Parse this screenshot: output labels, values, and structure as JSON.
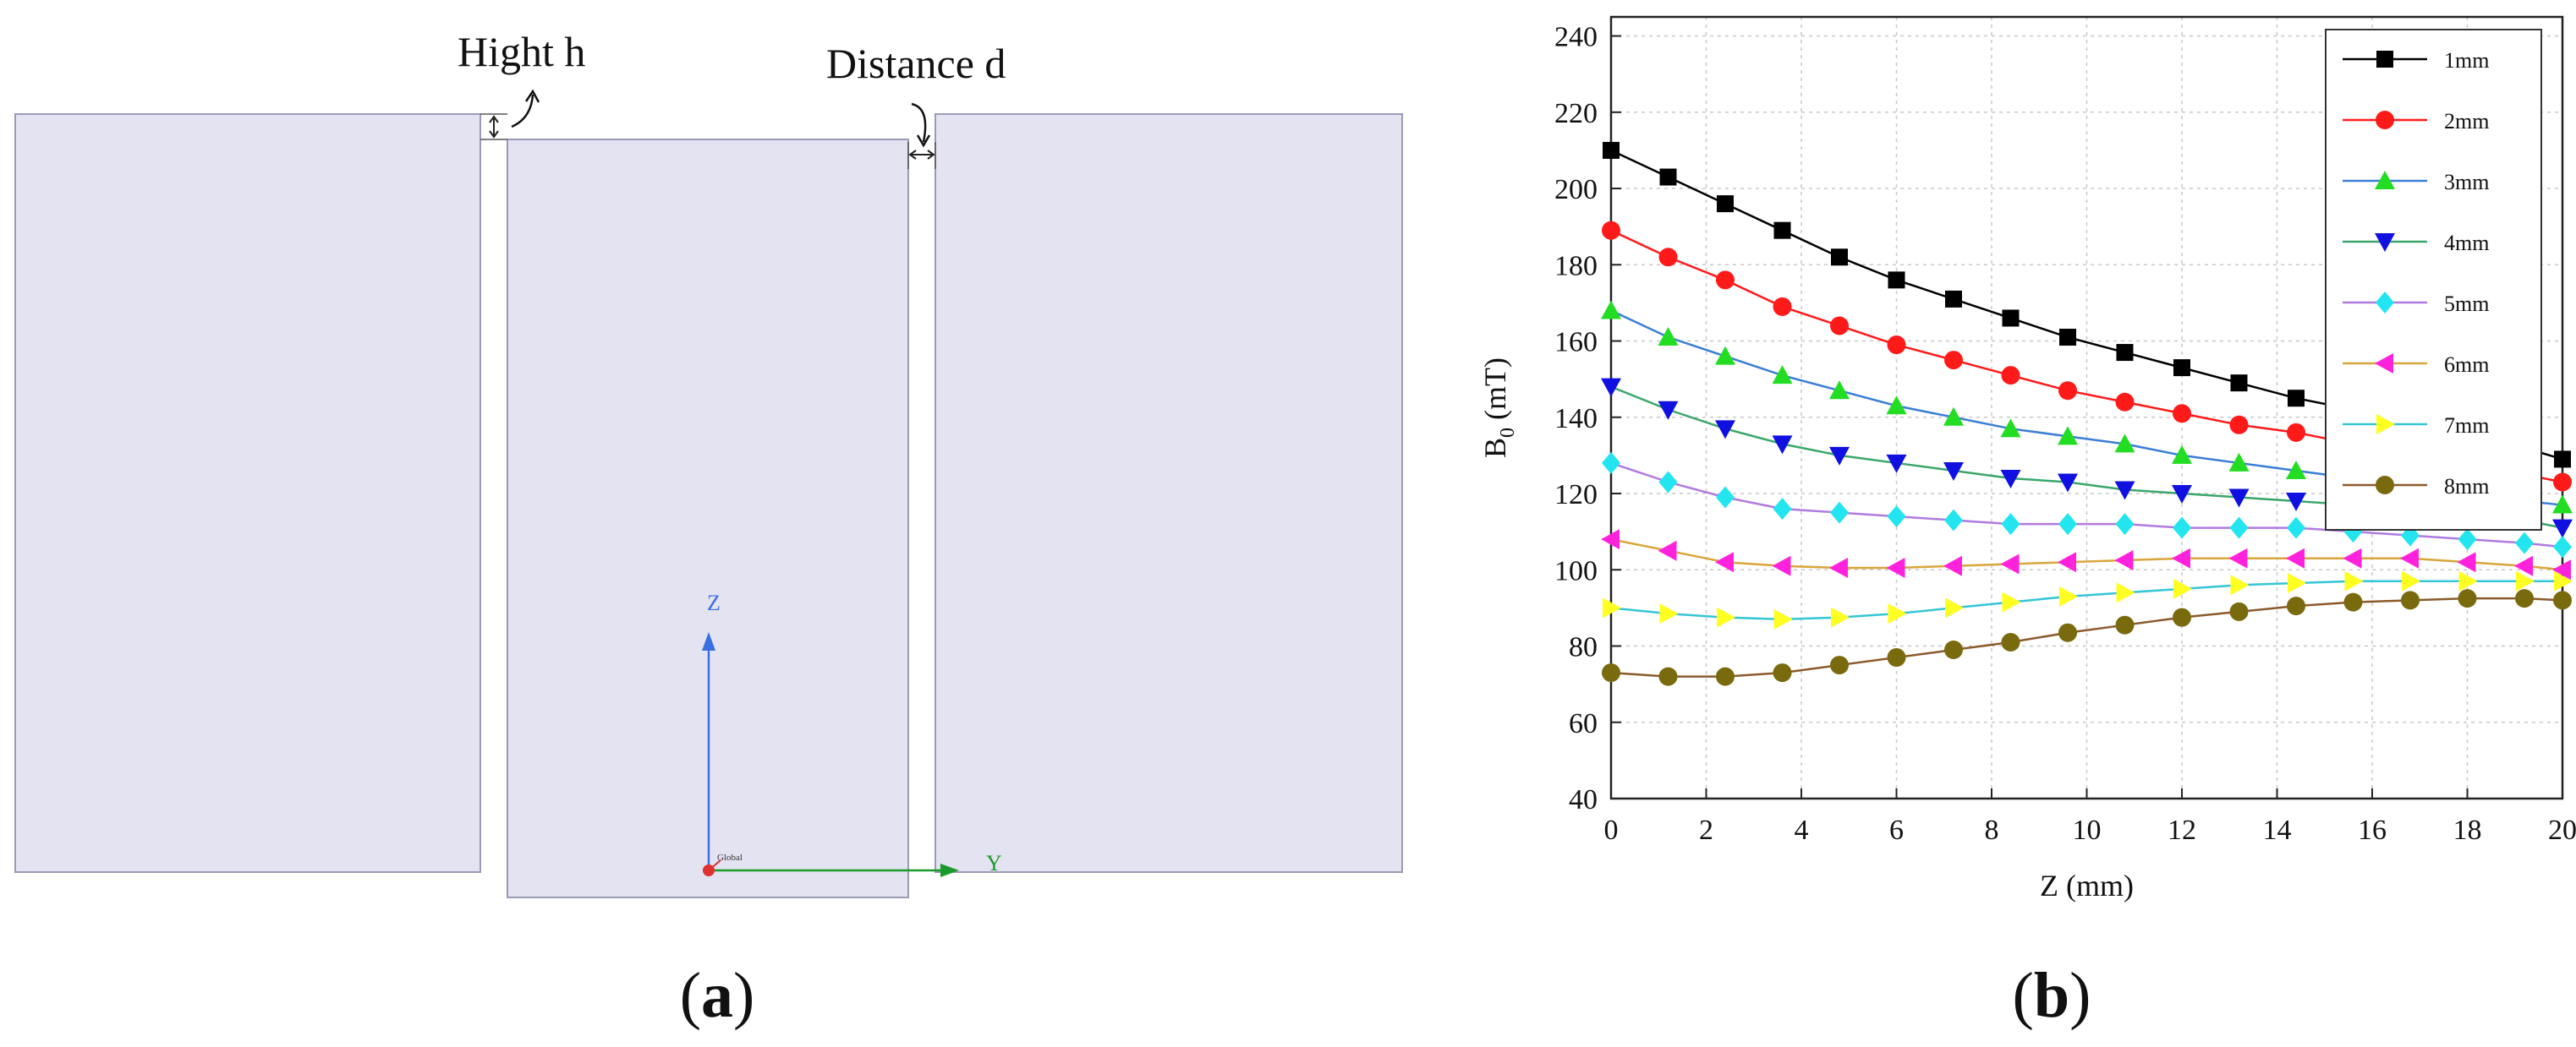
{
  "panel_a": {
    "caption_letter": "a",
    "label_height": "Hight h",
    "label_distance": "Distance d",
    "axis_z": "Z",
    "axis_y": "Y",
    "origin_label": "Global",
    "block_fill": "#e3e3f1",
    "block_stroke": "#9a9ab8"
  },
  "panel_b": {
    "caption_letter": "b"
  },
  "chart_data": {
    "type": "line",
    "title": "",
    "xlabel": "Z (mm)",
    "ylabel": "B0 (mT)",
    "ylabel_main": "B",
    "ylabel_sub": "0",
    "ylabel_unit": " (mT)",
    "xlim": [
      0,
      20
    ],
    "ylim": [
      40,
      245
    ],
    "xticks": [
      0,
      2,
      4,
      6,
      8,
      10,
      12,
      14,
      16,
      18,
      20
    ],
    "yticks": [
      40,
      60,
      80,
      100,
      120,
      140,
      160,
      180,
      200,
      220,
      240
    ],
    "grid": true,
    "legend_position": "top-right",
    "x": [
      0,
      1.2,
      2.4,
      3.6,
      4.8,
      6.0,
      7.2,
      8.4,
      9.6,
      10.8,
      12.0,
      13.2,
      14.4,
      15.6,
      16.8,
      18.0,
      19.2,
      20
    ],
    "series": [
      {
        "name": "1mm",
        "color": "#000000",
        "marker": "square",
        "values": [
          210,
          203,
          196,
          189,
          182,
          176,
          171,
          166,
          161,
          157,
          153,
          149,
          145,
          142,
          138,
          135,
          132,
          129
        ]
      },
      {
        "name": "2mm",
        "color": "#ff1a1a",
        "marker": "circle",
        "values": [
          189,
          182,
          176,
          169,
          164,
          159,
          155,
          151,
          147,
          144,
          141,
          138,
          136,
          133,
          130,
          127,
          125,
          123
        ]
      },
      {
        "name": "3mm",
        "color": "#22dd22",
        "line_color": "#3a7ed6",
        "marker": "triangle-up",
        "values": [
          168,
          161,
          156,
          151,
          147,
          143,
          140,
          137,
          135,
          133,
          130,
          128,
          126,
          124,
          122,
          120,
          118,
          117
        ]
      },
      {
        "name": "4mm",
        "color": "#1010e0",
        "line_color": "#3aa66a",
        "marker": "triangle-down",
        "values": [
          148,
          142,
          137,
          133,
          130,
          128,
          126,
          124,
          123,
          121,
          120,
          119,
          118,
          117,
          116,
          114,
          113,
          111
        ]
      },
      {
        "name": "5mm",
        "color": "#22e5f0",
        "line_color": "#b07ae0",
        "marker": "diamond",
        "values": [
          128,
          123,
          119,
          116,
          115,
          114,
          113,
          112,
          112,
          112,
          111,
          111,
          111,
          110,
          109,
          108,
          107,
          106
        ]
      },
      {
        "name": "6mm",
        "color": "#ff22dd",
        "line_color": "#d8a63a",
        "marker": "triangle-left",
        "values": [
          108,
          105,
          102,
          101,
          100.5,
          100.5,
          101,
          101.5,
          102,
          102.5,
          103,
          103,
          103,
          103,
          103,
          102,
          101,
          100
        ]
      },
      {
        "name": "7mm",
        "color": "#ffff22",
        "line_color": "#34c6d6",
        "marker": "triangle-right",
        "values": [
          90,
          88.5,
          87.5,
          87,
          87.5,
          88.5,
          90,
          91.5,
          93,
          94,
          95,
          96,
          96.5,
          97,
          97,
          97,
          97,
          97
        ]
      },
      {
        "name": "8mm",
        "color": "#7a6a0e",
        "line_color": "#8b5a2b",
        "marker": "circle",
        "values": [
          73,
          72,
          72,
          73,
          75,
          77,
          79,
          81,
          83.5,
          85.5,
          87.5,
          89,
          90.5,
          91.5,
          92,
          92.5,
          92.5,
          92
        ]
      }
    ]
  }
}
